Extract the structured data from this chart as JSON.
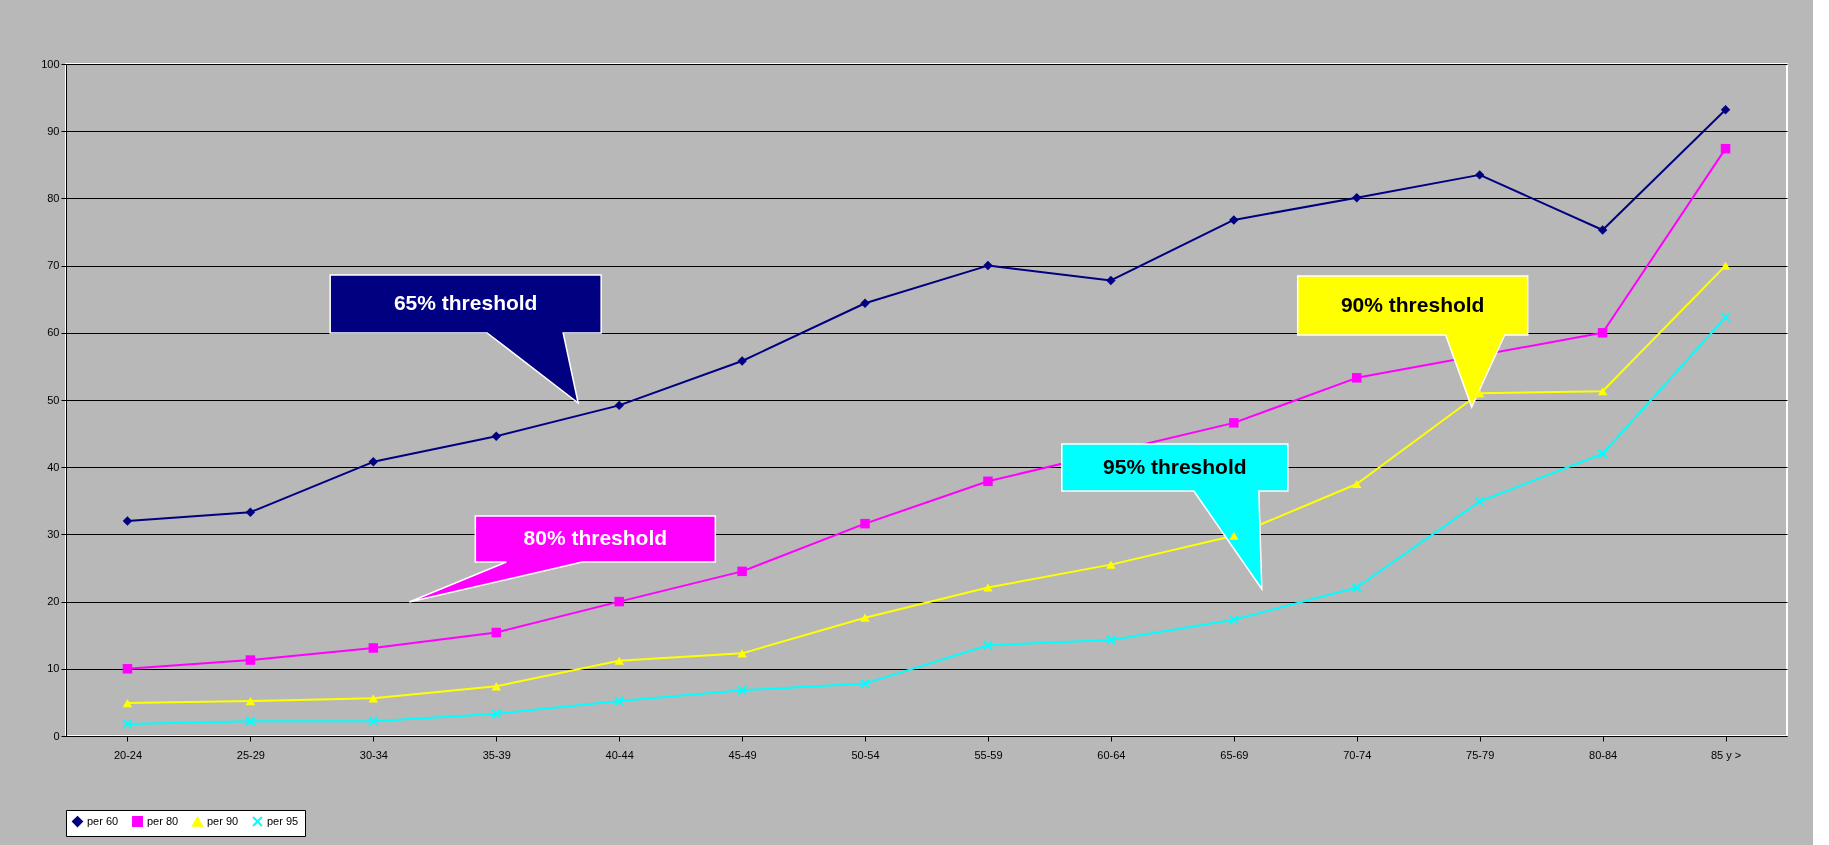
{
  "chart_data": {
    "type": "line",
    "categories": [
      "20-24",
      "25-29",
      "30-34",
      "35-39",
      "40-44",
      "45-49",
      "50-54",
      "55-59",
      "60-64",
      "65-69",
      "70-74",
      "75-79",
      "80-84",
      "85 y >"
    ],
    "series": [
      {
        "name": "per 60",
        "color": "#000080",
        "marker": "diamond",
        "values": [
          32,
          33.3,
          40.8,
          44.6,
          49.2,
          55.8,
          64.4,
          70,
          67.8,
          76.8,
          80.1,
          83.5,
          75.3,
          93.2
        ]
      },
      {
        "name": "per 80",
        "color": "#ff00ff",
        "marker": "square",
        "values": [
          10,
          11.3,
          13.1,
          15.4,
          20,
          24.5,
          31.6,
          37.9,
          null,
          46.6,
          53.3,
          null,
          60,
          87.4
        ]
      },
      {
        "name": "per 90",
        "color": "#ffff00",
        "marker": "triangle",
        "values": [
          4.9,
          5.2,
          5.6,
          7.4,
          11.2,
          12.3,
          17.6,
          22.1,
          25.5,
          29.8,
          37.5,
          51,
          51.3,
          70
        ]
      },
      {
        "name": "per 95",
        "color": "#00ffff",
        "marker": "cross",
        "values": [
          1.8,
          2.2,
          2.2,
          3.3,
          5.2,
          6.8,
          7.8,
          13.5,
          14.3,
          17.3,
          22.1,
          34.9,
          42,
          62.3
        ]
      }
    ],
    "ylim": [
      0,
      100
    ],
    "yticks": [
      0,
      10,
      20,
      30,
      40,
      50,
      60,
      70,
      80,
      90,
      100
    ],
    "grid": "y",
    "legend": "bottom",
    "annotations": [
      "65% threshold",
      "80% threshold",
      "90% threshold",
      "95% threshold"
    ]
  }
}
